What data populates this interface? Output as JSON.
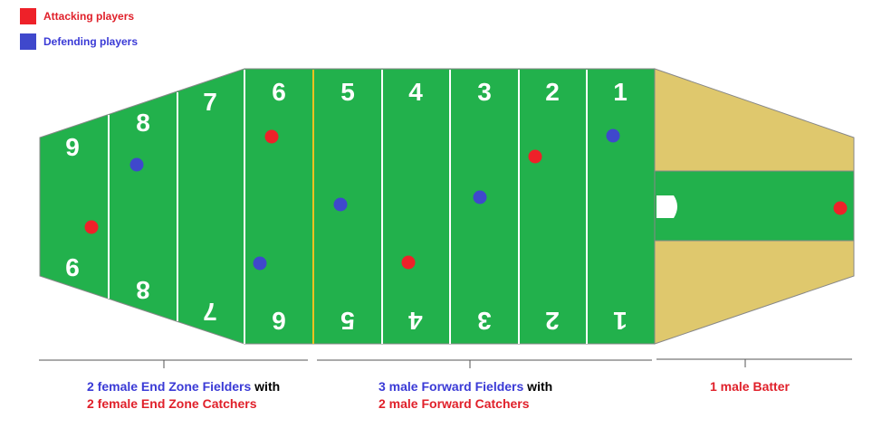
{
  "legend": {
    "items": [
      {
        "label": "Attacking players",
        "color": "#ee2129"
      },
      {
        "label": "Defending players",
        "color": "#3f48cc"
      }
    ]
  },
  "field": {
    "grass_color": "#22b14c",
    "sand_color": "#dfc86d",
    "divider_color": "#f0c020",
    "zone_numbers_top": [
      "9",
      "8",
      "7",
      "6",
      "5",
      "4",
      "3",
      "2",
      "1"
    ],
    "zone_numbers_bottom": [
      "9",
      "8",
      "7",
      "6",
      "5",
      "4",
      "3",
      "2",
      "1"
    ]
  },
  "captions": {
    "end_zone": {
      "line1_colored": "2 female End Zone Fielders",
      "line1_suffix": " with",
      "line2": "2 female End Zone Catchers"
    },
    "forward": {
      "line1_colored": "3 male Forward Fielders",
      "line1_suffix": " with",
      "line2": "2 male Forward Catchers"
    },
    "batter": {
      "line1": "1 male Batter"
    }
  }
}
